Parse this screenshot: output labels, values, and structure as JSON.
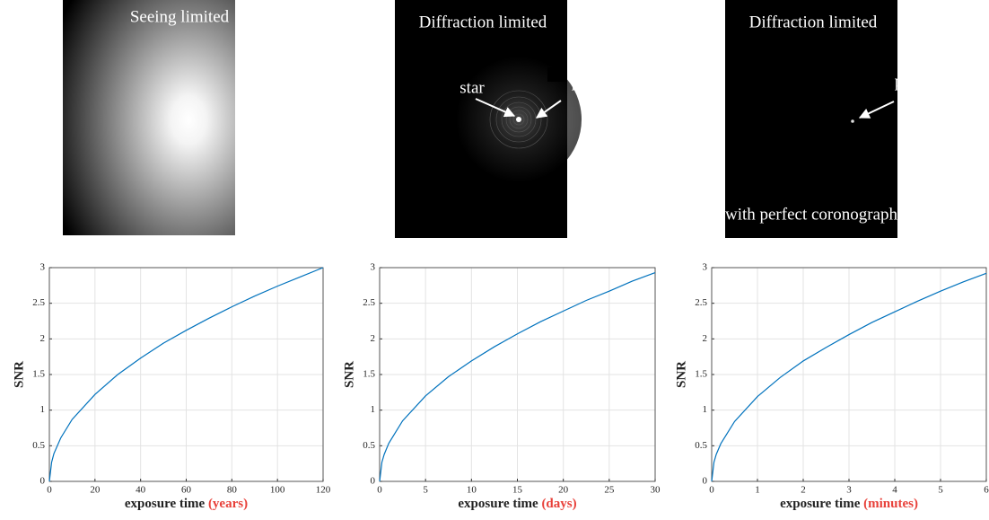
{
  "panels": [
    {
      "title": "Seeing limited"
    },
    {
      "title": "Diffraction limited",
      "labels": [
        "star",
        "planet"
      ]
    },
    {
      "title": "Diffraction limited",
      "labels": [
        "planet",
        "with perfect coronograph"
      ]
    }
  ],
  "chart_data": [
    {
      "type": "line",
      "y_label": "SNR",
      "x_label": "exposure time",
      "x_unit": "(years)",
      "unit_color": "#e8413a",
      "color": "#0072bd",
      "grid": true,
      "x": [
        0,
        1,
        2,
        5,
        10,
        20,
        30,
        40,
        50,
        60,
        70,
        80,
        90,
        100,
        110,
        120
      ],
      "values": [
        0,
        0.27,
        0.39,
        0.61,
        0.87,
        1.22,
        1.5,
        1.73,
        1.94,
        2.12,
        2.29,
        2.45,
        2.6,
        2.74,
        2.87,
        3.0
      ],
      "xlim": [
        0,
        120
      ],
      "xticks": [
        0,
        20,
        40,
        60,
        80,
        100,
        120
      ],
      "ylim": [
        0,
        3
      ],
      "yticks": [
        0,
        0.5,
        1,
        1.5,
        2,
        2.5,
        3
      ]
    },
    {
      "type": "line",
      "y_label": "SNR",
      "x_label": "exposure time",
      "x_unit": "(days)",
      "unit_color": "#e8413a",
      "color": "#0072bd",
      "grid": true,
      "x": [
        0,
        0.25,
        0.5,
        1,
        2.5,
        5,
        7.5,
        10,
        12.5,
        15,
        17.5,
        20,
        22.5,
        25,
        27.5,
        30
      ],
      "values": [
        0,
        0.27,
        0.38,
        0.535,
        0.85,
        1.2,
        1.47,
        1.69,
        1.89,
        2.07,
        2.24,
        2.39,
        2.54,
        2.67,
        2.81,
        2.93
      ],
      "xlim": [
        0,
        30
      ],
      "xticks": [
        0,
        5,
        10,
        15,
        20,
        25,
        30
      ],
      "ylim": [
        0,
        3
      ],
      "yticks": [
        0,
        0.5,
        1,
        1.5,
        2,
        2.5,
        3
      ]
    },
    {
      "type": "line",
      "y_label": "SNR",
      "x_label": "exposure time",
      "x_unit": "(minutes)",
      "unit_color": "#e8413a",
      "color": "#0072bd",
      "grid": true,
      "x": [
        0,
        0.05,
        0.1,
        0.2,
        0.5,
        1,
        1.5,
        2,
        2.5,
        3,
        3.5,
        4,
        4.5,
        5,
        5.5,
        6
      ],
      "values": [
        0,
        0.27,
        0.38,
        0.53,
        0.84,
        1.19,
        1.46,
        1.69,
        1.88,
        2.06,
        2.23,
        2.38,
        2.53,
        2.67,
        2.8,
        2.92
      ],
      "xlim": [
        0,
        6
      ],
      "xticks": [
        0,
        1,
        2,
        3,
        4,
        5,
        6
      ],
      "ylim": [
        0,
        3
      ],
      "yticks": [
        0,
        0.5,
        1,
        1.5,
        2,
        2.5,
        3
      ]
    }
  ]
}
